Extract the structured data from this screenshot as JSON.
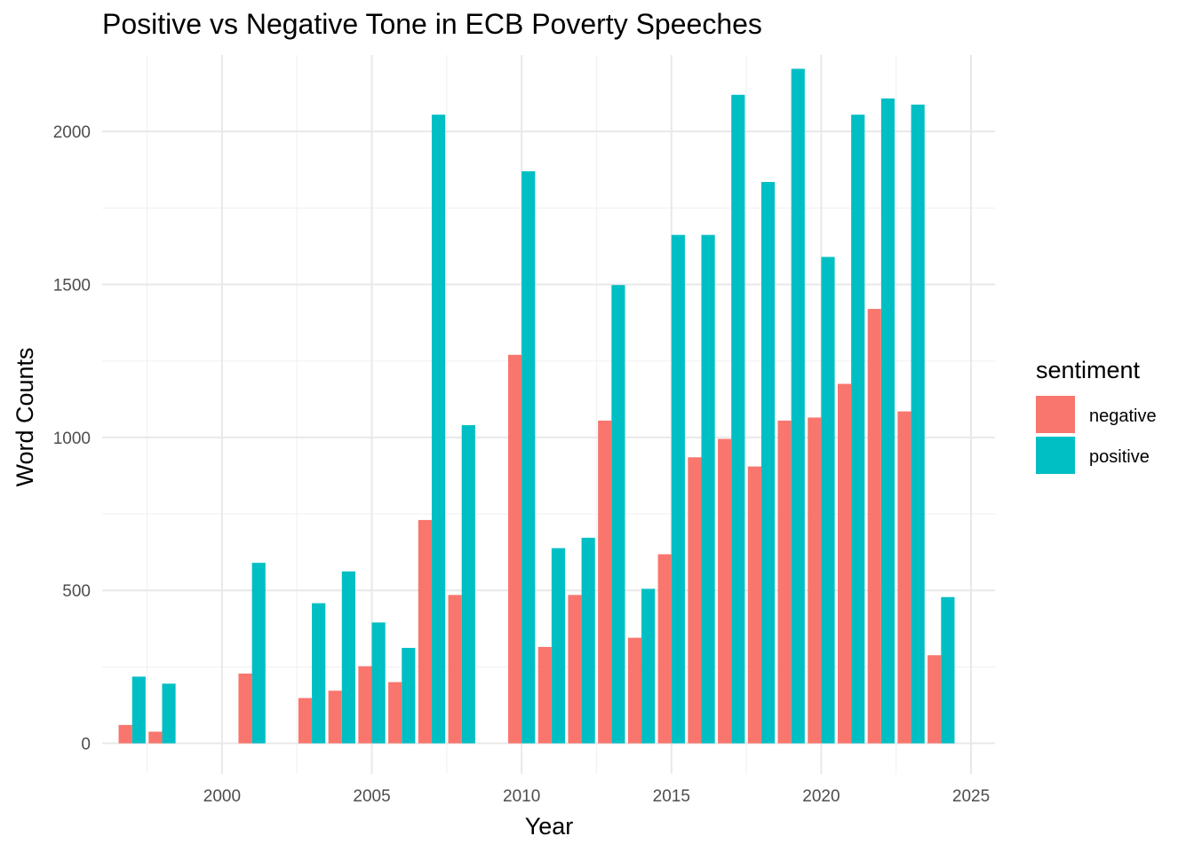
{
  "chart_data": {
    "type": "bar",
    "title": "Positive vs Negative Tone in ECB Poverty Speeches",
    "xlabel": "Year",
    "ylabel": "Word Counts",
    "x_ticks": [
      2000,
      2005,
      2010,
      2015,
      2020,
      2025
    ],
    "y_ticks": [
      0,
      500,
      1000,
      1500,
      2000
    ],
    "xlim": [
      1996,
      2025.8
    ],
    "ylim": [
      -100,
      2250
    ],
    "grid": true,
    "legend": {
      "title": "sentiment",
      "position": "right"
    },
    "colors": {
      "negative": "#F8766D",
      "positive": "#00BFC4",
      "grid_major": "#e8e8e8",
      "grid_minor": "#f2f2f2"
    },
    "series": [
      {
        "name": "negative",
        "points": [
          [
            1997,
            60
          ],
          [
            1998,
            38
          ],
          [
            2001,
            228
          ],
          [
            2003,
            148
          ],
          [
            2004,
            172
          ],
          [
            2005,
            252
          ],
          [
            2006,
            200
          ],
          [
            2007,
            730
          ],
          [
            2008,
            485
          ],
          [
            2010,
            1270
          ],
          [
            2011,
            315
          ],
          [
            2012,
            485
          ],
          [
            2013,
            1055
          ],
          [
            2014,
            345
          ],
          [
            2015,
            618
          ],
          [
            2016,
            935
          ],
          [
            2017,
            995
          ],
          [
            2018,
            905
          ],
          [
            2019,
            1055
          ],
          [
            2020,
            1065
          ],
          [
            2021,
            1175
          ],
          [
            2022,
            1420
          ],
          [
            2023,
            1085
          ],
          [
            2024,
            288
          ]
        ]
      },
      {
        "name": "positive",
        "points": [
          [
            1997,
            218
          ],
          [
            1998,
            195
          ],
          [
            2001,
            590
          ],
          [
            2003,
            458
          ],
          [
            2004,
            562
          ],
          [
            2005,
            395
          ],
          [
            2006,
            312
          ],
          [
            2007,
            2055
          ],
          [
            2008,
            1040
          ],
          [
            2010,
            1870
          ],
          [
            2011,
            638
          ],
          [
            2012,
            672
          ],
          [
            2013,
            1498
          ],
          [
            2014,
            505
          ],
          [
            2015,
            1662
          ],
          [
            2016,
            1662
          ],
          [
            2017,
            2120
          ],
          [
            2018,
            1835
          ],
          [
            2019,
            2205
          ],
          [
            2020,
            1590
          ],
          [
            2021,
            2055
          ],
          [
            2022,
            2108
          ],
          [
            2023,
            2088
          ],
          [
            2024,
            478
          ]
        ]
      }
    ]
  }
}
